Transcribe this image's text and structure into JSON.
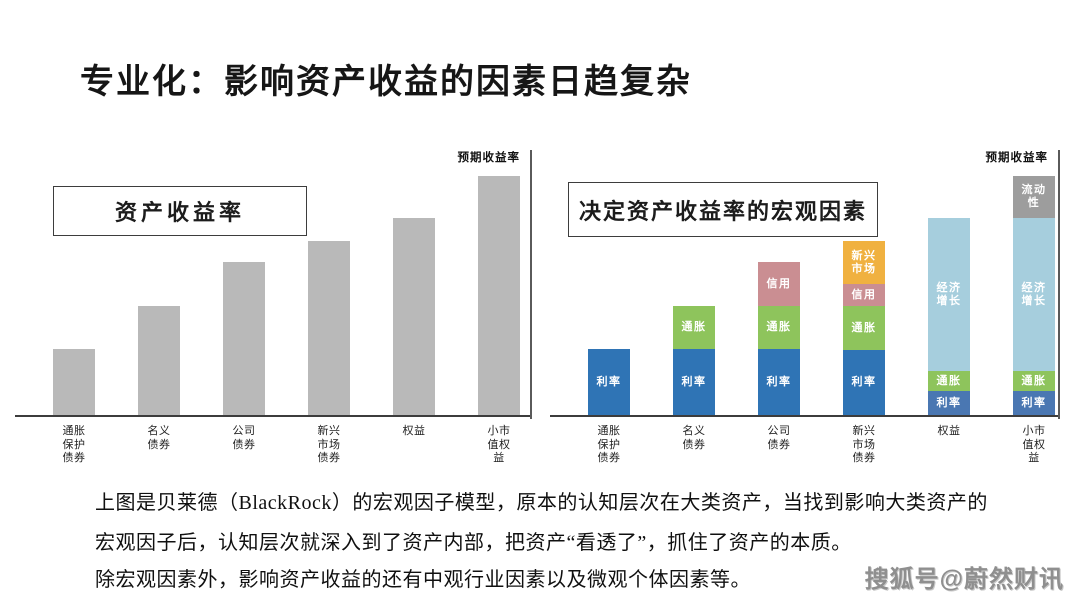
{
  "slide": {
    "title": "专业化：影响资产收益的因素日趋复杂",
    "paragraphs": [
      "上图是贝莱德（BlackRock）的宏观因子模型，原本的认知层次在大类资产，当找到影响大类资产的宏观因子后，认知层次就深入到了资产内部，把资产“看透了”，抓住了资产的本质。",
      "除宏观因素外，影响资产收益的还有中观行业因素以及微观个体因素等。"
    ],
    "watermark": "搜狐号@蔚然财讯"
  },
  "chart_data": [
    {
      "type": "bar",
      "title": "资产收益率",
      "axis_label": "预期收益率",
      "legend": "none",
      "grid": false,
      "note": "no numeric scale shown; values are relative expected-return heights (px units, axis max 272)",
      "categories": [
        "通胀保护债券",
        "名义债券",
        "公司债券",
        "新兴市场债券",
        "权益",
        "小市值权益"
      ],
      "category_lines": [
        [
          "通胀",
          "保护",
          "债券"
        ],
        [
          "名义",
          "债券"
        ],
        [
          "公司",
          "债券"
        ],
        [
          "新兴",
          "市场",
          "债券"
        ],
        [
          "权益"
        ],
        [
          "小市",
          "值权",
          "益"
        ]
      ],
      "values": [
        66,
        109,
        153,
        174,
        197,
        239
      ],
      "bar_color": "#b9b9b9",
      "ylim": [
        0,
        272
      ]
    },
    {
      "type": "stacked-bar",
      "title": "决定资产收益率的宏观因素",
      "axis_label": "预期收益率",
      "legend": "labels inside segments",
      "grid": false,
      "note": "no numeric scale shown; segment values are relative heights (px units, axis max 272)",
      "categories": [
        "通胀保护债券",
        "名义债券",
        "公司债券",
        "新兴市场债券",
        "权益",
        "小市值权益"
      ],
      "category_lines": [
        [
          "通胀",
          "保护",
          "债券"
        ],
        [
          "名义",
          "债券"
        ],
        [
          "公司",
          "债券"
        ],
        [
          "新兴",
          "市场",
          "债券"
        ],
        [
          "权益"
        ],
        [
          "小市",
          "值权",
          "益"
        ]
      ],
      "factor_colors": {
        "利率": "#2f74b5",
        "利率(权益类)": "#4a77b2",
        "通胀": "#8ec45c",
        "信用": "#ca8e92",
        "新兴市场": "#f0b140",
        "经济增长": "#a6cedd",
        "流动性": "#9d9d9d"
      },
      "bars": [
        {
          "category": "通胀保护债券",
          "segments": [
            {
              "name": "利率",
              "lines": [
                "利率"
              ],
              "value": 66,
              "color": "#2f74b5"
            }
          ]
        },
        {
          "category": "名义债券",
          "segments": [
            {
              "name": "利率",
              "lines": [
                "利率"
              ],
              "value": 66,
              "color": "#2f74b5"
            },
            {
              "name": "通胀",
              "lines": [
                "通胀"
              ],
              "value": 43,
              "color": "#8ec45c"
            }
          ]
        },
        {
          "category": "公司债券",
          "segments": [
            {
              "name": "利率",
              "lines": [
                "利率"
              ],
              "value": 66,
              "color": "#2f74b5"
            },
            {
              "name": "通胀",
              "lines": [
                "通胀"
              ],
              "value": 43,
              "color": "#8ec45c"
            },
            {
              "name": "信用",
              "lines": [
                "信用"
              ],
              "value": 44,
              "color": "#ca8e92"
            }
          ]
        },
        {
          "category": "新兴市场债券",
          "segments": [
            {
              "name": "利率",
              "lines": [
                "利率"
              ],
              "value": 65,
              "color": "#2f74b5"
            },
            {
              "name": "通胀",
              "lines": [
                "通胀"
              ],
              "value": 44,
              "color": "#8ec45c"
            },
            {
              "name": "信用",
              "lines": [
                "信用"
              ],
              "value": 22,
              "color": "#ca8e92"
            },
            {
              "name": "新兴市场",
              "lines": [
                "新兴",
                "市场"
              ],
              "value": 43,
              "color": "#f0b140"
            }
          ]
        },
        {
          "category": "权益",
          "segments": [
            {
              "name": "利率",
              "lines": [
                "利率"
              ],
              "value": 24,
              "color": "#4a77b2"
            },
            {
              "name": "通胀",
              "lines": [
                "通胀"
              ],
              "value": 20,
              "color": "#8ec45c"
            },
            {
              "name": "经济增长",
              "lines": [
                "经济",
                "增长"
              ],
              "value": 153,
              "color": "#a6cedd"
            }
          ]
        },
        {
          "category": "小市值权益",
          "segments": [
            {
              "name": "利率",
              "lines": [
                "利率"
              ],
              "value": 24,
              "color": "#4a77b2"
            },
            {
              "name": "通胀",
              "lines": [
                "通胀"
              ],
              "value": 20,
              "color": "#8ec45c"
            },
            {
              "name": "经济增长",
              "lines": [
                "经济",
                "增长"
              ],
              "value": 153,
              "color": "#a6cedd"
            },
            {
              "name": "流动性",
              "lines": [
                "流动",
                "性"
              ],
              "value": 42,
              "color": "#9d9d9d"
            }
          ]
        }
      ],
      "ylim": [
        0,
        272
      ]
    }
  ]
}
